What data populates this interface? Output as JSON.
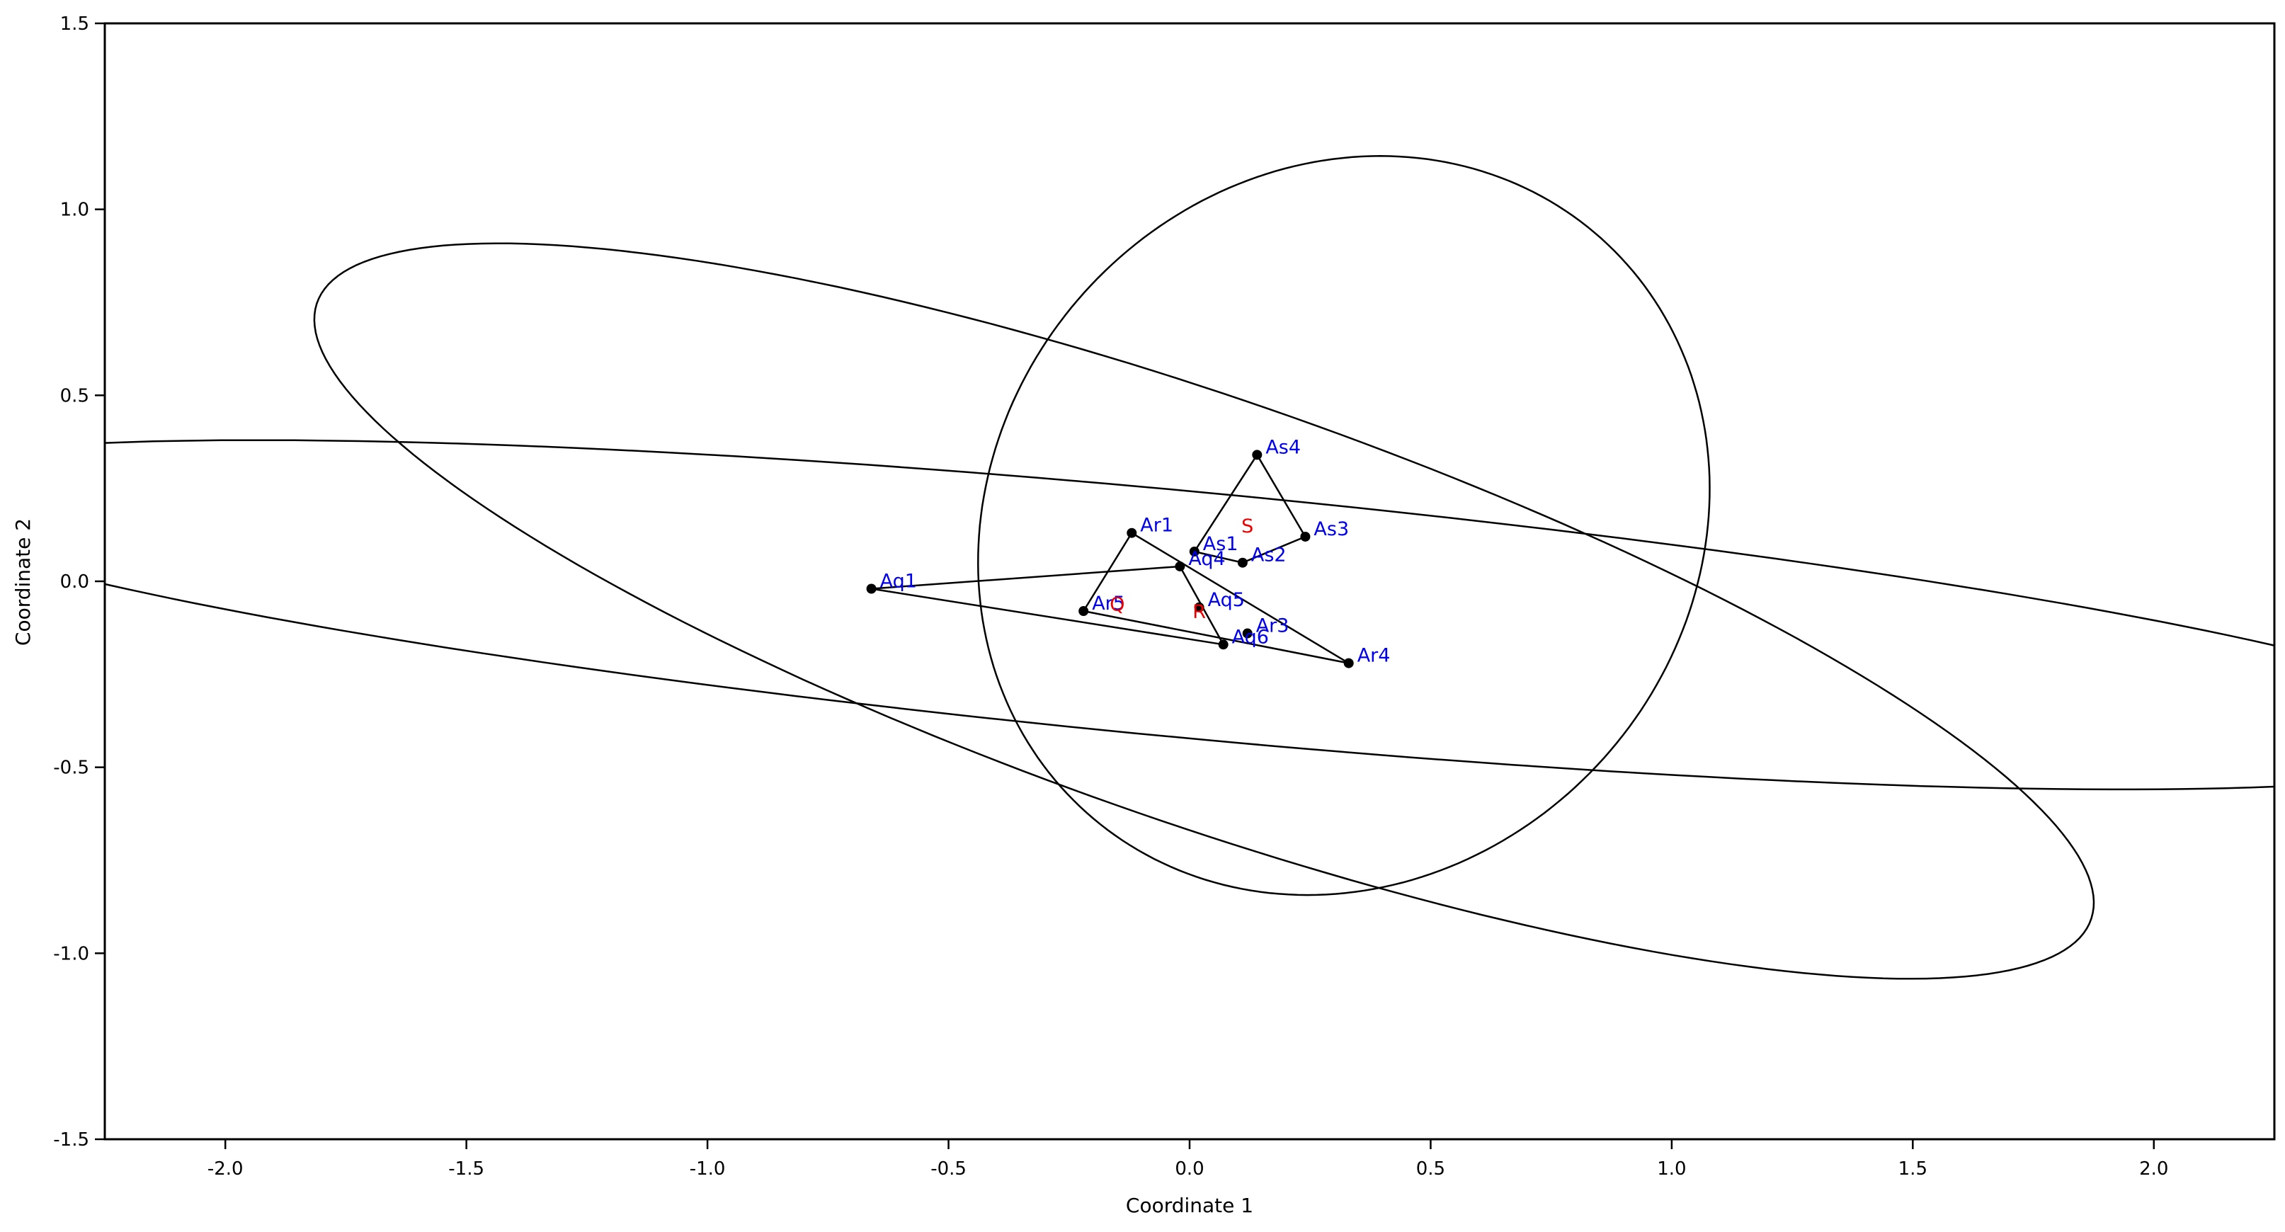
{
  "chart_data": {
    "type": "scatter",
    "title": "",
    "xlabel": "Coordinate 1",
    "ylabel": "Coordinate 2",
    "xlim": [
      -2.25,
      2.25
    ],
    "ylim": [
      -1.5,
      1.5
    ],
    "grid": false,
    "x_ticks": [
      -2.0,
      -1.5,
      -1.0,
      -0.5,
      0.0,
      0.5,
      1.0,
      1.5,
      2.0
    ],
    "y_ticks": [
      -1.5,
      -1.0,
      -0.5,
      0.0,
      0.5,
      1.0,
      1.5
    ],
    "x_tick_labels": [
      "-2.0",
      "-1.5",
      "-1.0",
      "-0.5",
      "0.0",
      "0.5",
      "1.0",
      "1.5",
      "2.0"
    ],
    "y_tick_labels": [
      "-1.5",
      "-1.0",
      "-0.5",
      "0.0",
      "0.5",
      "1.0",
      "1.5"
    ],
    "points": [
      {
        "label": "Aq1",
        "x": -0.66,
        "y": -0.02
      },
      {
        "label": "Aq4",
        "x": -0.02,
        "y": 0.04
      },
      {
        "label": "Aq5",
        "x": 0.02,
        "y": -0.07
      },
      {
        "label": "Aq6",
        "x": 0.07,
        "y": -0.17
      },
      {
        "label": "Ar1",
        "x": -0.12,
        "y": 0.13
      },
      {
        "label": "Ar3",
        "x": 0.12,
        "y": -0.14
      },
      {
        "label": "Ar4",
        "x": 0.33,
        "y": -0.22
      },
      {
        "label": "Ar5",
        "x": -0.22,
        "y": -0.08
      },
      {
        "label": "As1",
        "x": 0.01,
        "y": 0.08
      },
      {
        "label": "As2",
        "x": 0.11,
        "y": 0.05
      },
      {
        "label": "As3",
        "x": 0.24,
        "y": 0.12
      },
      {
        "label": "As4",
        "x": 0.14,
        "y": 0.34
      }
    ],
    "hulls": [
      {
        "vertices": [
          "Aq1",
          "Aq4",
          "Aq6"
        ]
      },
      {
        "vertices": [
          "Ar1",
          "Ar4",
          "Ar5"
        ]
      },
      {
        "vertices": [
          "As1",
          "As4",
          "As3",
          "As2"
        ]
      }
    ],
    "centroids": [
      {
        "label": "Q",
        "x": -0.15,
        "y": -0.06
      },
      {
        "label": "R",
        "x": 0.02,
        "y": -0.08
      },
      {
        "label": "S",
        "x": 0.12,
        "y": 0.15
      }
    ],
    "ellipses": [
      {
        "cx": 0.0,
        "cy": -0.09,
        "rx": 2.76,
        "ry": 0.33,
        "angle_deg": -7
      },
      {
        "cx": 0.03,
        "cy": -0.08,
        "rx": 2.02,
        "ry": 0.55,
        "angle_deg": -25
      },
      {
        "cx": 0.32,
        "cy": 0.15,
        "rx": 0.75,
        "ry": 1.0,
        "angle_deg": -10
      }
    ]
  }
}
